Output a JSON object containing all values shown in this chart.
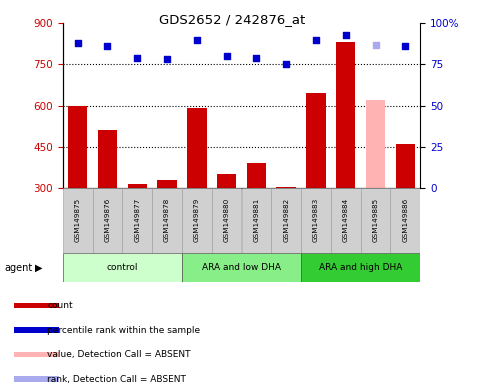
{
  "title": "GDS2652 / 242876_at",
  "samples": [
    "GSM149875",
    "GSM149876",
    "GSM149877",
    "GSM149878",
    "GSM149879",
    "GSM149880",
    "GSM149881",
    "GSM149882",
    "GSM149883",
    "GSM149884",
    "GSM149885",
    "GSM149886"
  ],
  "bar_values": [
    600,
    510,
    315,
    330,
    590,
    350,
    390,
    305,
    645,
    830,
    620,
    460
  ],
  "bar_colors": [
    "#cc0000",
    "#cc0000",
    "#cc0000",
    "#cc0000",
    "#cc0000",
    "#cc0000",
    "#cc0000",
    "#cc0000",
    "#cc0000",
    "#cc0000",
    "#ffb3b3",
    "#cc0000"
  ],
  "scatter_values": [
    88,
    86,
    79,
    78,
    90,
    80,
    79,
    75,
    90,
    93,
    87,
    86
  ],
  "scatter_colors": [
    "#0000cc",
    "#0000cc",
    "#0000cc",
    "#0000cc",
    "#0000cc",
    "#0000cc",
    "#0000cc",
    "#0000cc",
    "#0000cc",
    "#0000cc",
    "#aaaaee",
    "#0000cc"
  ],
  "ylim_left": [
    300,
    900
  ],
  "ylim_right": [
    0,
    100
  ],
  "yticks_left": [
    300,
    450,
    600,
    750,
    900
  ],
  "yticks_right": [
    0,
    25,
    50,
    75,
    100
  ],
  "ytick_right_labels": [
    "0",
    "25",
    "50",
    "75",
    "100%"
  ],
  "groups": [
    {
      "label": "control",
      "start": 0,
      "end": 3,
      "color": "#ccffcc"
    },
    {
      "label": "ARA and low DHA",
      "start": 4,
      "end": 7,
      "color": "#88ee88"
    },
    {
      "label": "ARA and high DHA",
      "start": 8,
      "end": 11,
      "color": "#33cc33"
    }
  ],
  "legend_items": [
    {
      "label": "count",
      "color": "#cc0000"
    },
    {
      "label": "percentile rank within the sample",
      "color": "#0000cc"
    },
    {
      "label": "value, Detection Call = ABSENT",
      "color": "#ffb3b3"
    },
    {
      "label": "rank, Detection Call = ABSENT",
      "color": "#aaaaee"
    }
  ],
  "left_tick_color": "#cc0000",
  "right_tick_color": "#0000cc",
  "bar_bottom": 300,
  "dotted_line_values": [
    450,
    600,
    750
  ],
  "agent_label": "agent"
}
